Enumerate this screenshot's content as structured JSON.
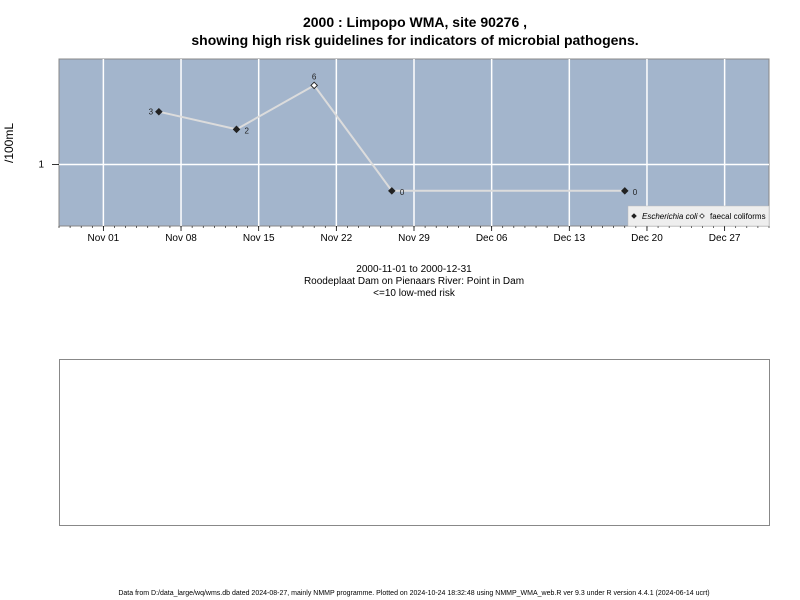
{
  "title_line1": "2000 : Limpopo WMA, site 90276 ,",
  "title_line2": "showing high risk guidelines for indicators of microbial pathogens.",
  "subtitle": {
    "line1": "2000-11-01 to 2000-12-31",
    "line2": "Roodeplaat Dam on Pienaars River: Point in Dam",
    "line3": "<=10 low-med risk"
  },
  "footer": "Data from D:/data_large/wq/wms.db dated 2024-08-27, mainly NMMP programme. Plotted on 2024-10-24 18:32:48 using NMMP_WMA_web.R ver 9.3 under R version 4.4.1 (2024-06-14 ucrt)",
  "colors": {
    "panel_bg": "#a3b5cc",
    "grid": "#ffffff",
    "line": "#dcdcdc",
    "marker": "#222222"
  },
  "chart_data": {
    "type": "line",
    "x_type": "date",
    "xlim": [
      "2000-10-28",
      "2000-12-31"
    ],
    "x_ticks": [
      "2000-11-01",
      "2000-11-08",
      "2000-11-15",
      "2000-11-22",
      "2000-11-29",
      "2000-12-06",
      "2000-12-13",
      "2000-12-20",
      "2000-12-27"
    ],
    "x_tick_labels": [
      "Nov 01",
      "Nov 08",
      "Nov 15",
      "Nov 22",
      "Nov 29",
      "Dec 06",
      "Dec 13",
      "Dec 20",
      "Dec 27"
    ],
    "ylabel": "/100mL",
    "y_ticks": [
      1
    ],
    "y_tick_labels": [
      "1"
    ],
    "ylim": [
      0.3,
      2.2
    ],
    "grid": true,
    "legend": {
      "position": "bottom-right",
      "entries": [
        "Escherichia coli",
        "faecal coliforms"
      ]
    },
    "series": [
      {
        "name": "Escherichia coli",
        "marker": "filled-diamond",
        "points": [
          {
            "x": "2000-11-06",
            "y": 1.6,
            "label": "3"
          },
          {
            "x": "2000-11-13",
            "y": 1.4,
            "label": "2"
          },
          {
            "x": "2000-11-27",
            "y": 0.7,
            "label": "0"
          },
          {
            "x": "2000-12-18",
            "y": 0.7,
            "label": "0"
          }
        ]
      },
      {
        "name": "faecal coliforms",
        "marker": "open-diamond",
        "points": [
          {
            "x": "2000-11-20",
            "y": 1.9,
            "label": "6"
          }
        ]
      }
    ],
    "line_order": [
      {
        "series": 0,
        "point": 0
      },
      {
        "series": 0,
        "point": 1
      },
      {
        "series": 1,
        "point": 0
      },
      {
        "series": 0,
        "point": 2
      },
      {
        "series": 0,
        "point": 3
      }
    ]
  }
}
